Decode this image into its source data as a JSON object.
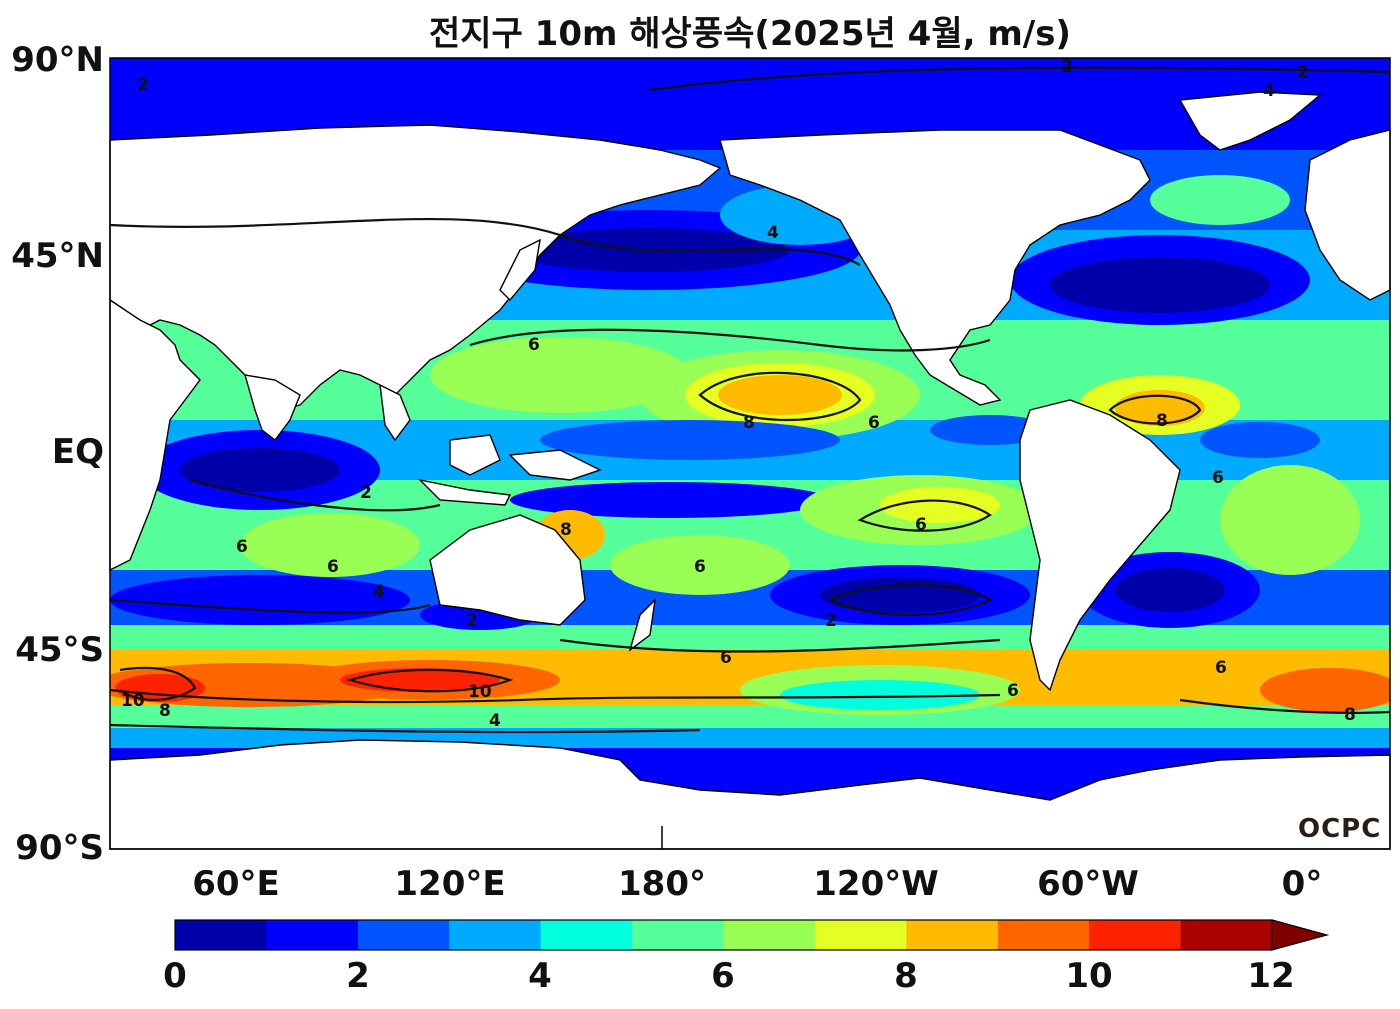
{
  "title": "전지구 10m 해상풍속(2025년 4월, m/s)",
  "lat_labels": [
    "90°N",
    "45°N",
    "EQ",
    "45°S",
    "90°S"
  ],
  "lon_labels": [
    "60°E",
    "120°E",
    "180°",
    "120°W",
    "60°W",
    "0°"
  ],
  "colorbar": {
    "tick_labels": [
      "0",
      "2",
      "4",
      "6",
      "8",
      "10",
      "12"
    ],
    "colors": [
      "#0000aa",
      "#0000ff",
      "#0055ff",
      "#00aaff",
      "#00ffdd",
      "#55ff99",
      "#99ff55",
      "#e5ff22",
      "#ffbb00",
      "#ff6600",
      "#ff2200",
      "#aa0000",
      "#800000"
    ],
    "extend": "max"
  },
  "contour_labels": [
    "2",
    "4",
    "6",
    "8",
    "10"
  ],
  "logo_text": "OCPC",
  "map": {
    "projection": "equirectangular",
    "central_longitude": "150°E",
    "variable": "10m sea surface wind speed",
    "units": "m/s",
    "period": "2025-04"
  }
}
